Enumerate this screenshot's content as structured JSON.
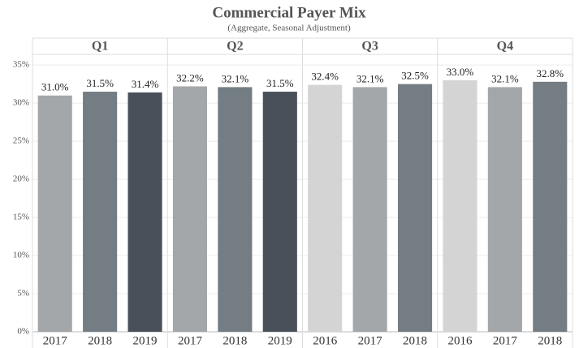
{
  "chart_data": {
    "type": "bar",
    "title": "Commercial Payer Mix",
    "subtitle": "(Aggregate, Seasonal Adjustment)",
    "ylim": [
      0,
      36.4
    ],
    "yticks": [
      {
        "value": 0,
        "label": "0%"
      },
      {
        "value": 5,
        "label": "5%"
      },
      {
        "value": 10,
        "label": "10%"
      },
      {
        "value": 15,
        "label": "15%"
      },
      {
        "value": 20,
        "label": "20%"
      },
      {
        "value": 25,
        "label": "25%"
      },
      {
        "value": 30,
        "label": "30%"
      },
      {
        "value": 35,
        "label": "35%"
      }
    ],
    "grid": true,
    "panels": [
      {
        "name": "Q1",
        "categories": [
          "2017",
          "2018",
          "2019"
        ],
        "values": [
          31.0,
          31.5,
          31.4
        ],
        "value_labels": [
          "31.0%",
          "31.5%",
          "31.4%"
        ],
        "colors": [
          "#a4a7a9",
          "#737d83",
          "#4a505a"
        ]
      },
      {
        "name": "Q2",
        "categories": [
          "2017",
          "2018",
          "2019"
        ],
        "values": [
          32.2,
          32.1,
          31.5
        ],
        "value_labels": [
          "32.2%",
          "32.1%",
          "31.5%"
        ],
        "colors": [
          "#a4a7a9",
          "#737d83",
          "#4a505a"
        ]
      },
      {
        "name": "Q3",
        "categories": [
          "2016",
          "2017",
          "2018"
        ],
        "values": [
          32.4,
          32.1,
          32.5
        ],
        "value_labels": [
          "32.4%",
          "32.1%",
          "32.5%"
        ],
        "colors": [
          "#d4d4d4",
          "#a4a7a9",
          "#737d83"
        ]
      },
      {
        "name": "Q4",
        "categories": [
          "2016",
          "2017",
          "2018"
        ],
        "values": [
          33.0,
          32.1,
          32.8
        ],
        "value_labels": [
          "33.0%",
          "32.1%",
          "32.8%"
        ],
        "colors": [
          "#d4d4d4",
          "#a4a7a9",
          "#737d83"
        ]
      }
    ]
  }
}
